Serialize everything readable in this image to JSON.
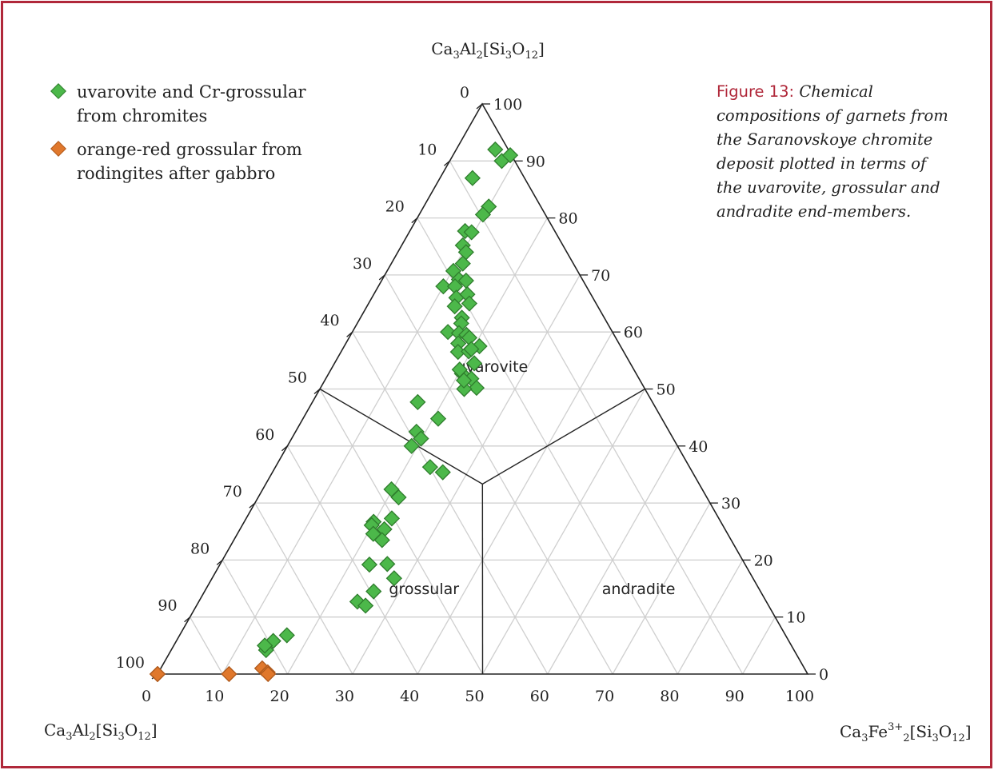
{
  "figure": {
    "label": "Figure 13:",
    "caption": "Chemical compositions of garnets from the Saranovskoye chromite deposit plotted in terms of the uvarovite, grossular and andradite end-members."
  },
  "legend": [
    {
      "label": "uvarovite and Cr-grossular from chromites",
      "color": "#4cb84a"
    },
    {
      "label": "orange-red grossular from rodingites after gabbro",
      "color": "#e0782c"
    }
  ],
  "chart_data": {
    "type": "scatter",
    "subtype": "ternary",
    "apex_labels": {
      "top": "Ca3Al2[Si3O12]",
      "bottom_left": "Ca3Al2[Si3O12]",
      "bottom_right": "Ca3Fe3+2[Si3O12]"
    },
    "left_axis_ticks": [
      "0",
      "10",
      "20",
      "30",
      "40",
      "50",
      "60",
      "70",
      "80",
      "90",
      "100"
    ],
    "right_axis_ticks": [
      "100",
      "90",
      "80",
      "70",
      "60",
      "50",
      "40",
      "30",
      "20",
      "10",
      "0"
    ],
    "bottom_axis_ticks": [
      "0",
      "10",
      "20",
      "30",
      "40",
      "50",
      "60",
      "70",
      "80",
      "90",
      "100"
    ],
    "regions": [
      "uvarovite",
      "grossular",
      "andradite"
    ],
    "grid": true,
    "series": [
      {
        "name": "uvarovite and Cr-grossular from chromites",
        "color": "#4cb84a",
        "points": [
          [
            6,
            92
          ],
          [
            5,
            87
          ],
          [
            8,
            90
          ],
          [
            8.8,
            91
          ],
          [
            10,
            82
          ],
          [
            9.8,
            80.6
          ],
          [
            8.5,
            77.7
          ],
          [
            9.6,
            77.5
          ],
          [
            9.4,
            75.2
          ],
          [
            10.5,
            74
          ],
          [
            11,
            72
          ],
          [
            10.2,
            70.7
          ],
          [
            10,
            68
          ],
          [
            11.8,
            69.2
          ],
          [
            13,
            69
          ],
          [
            11.8,
            68
          ],
          [
            13,
            66
          ],
          [
            14.4,
            66.6
          ],
          [
            15.5,
            65
          ],
          [
            13.5,
            64.5
          ],
          [
            15.6,
            62.5
          ],
          [
            16,
            61.5
          ],
          [
            14.7,
            60
          ],
          [
            16.5,
            59.8
          ],
          [
            17.8,
            59.5
          ],
          [
            18.5,
            59
          ],
          [
            17.3,
            58
          ],
          [
            18,
            56.5
          ],
          [
            19.6,
            56.6
          ],
          [
            20.8,
            57.5
          ],
          [
            19.8,
            57
          ],
          [
            21.5,
            54.5
          ],
          [
            20.5,
            52.7
          ],
          [
            22.4,
            51.8
          ],
          [
            24,
            50.2
          ],
          [
            22.2,
            50
          ],
          [
            21.4,
            51.5
          ],
          [
            19.8,
            53.4
          ],
          [
            16.2,
            47.7
          ],
          [
            20.8,
            44.8
          ],
          [
            18.6,
            42.5
          ],
          [
            19.9,
            41.3
          ],
          [
            19.1,
            40
          ],
          [
            23.8,
            36.3
          ],
          [
            26.2,
            35.4
          ],
          [
            19.8,
            32.4
          ],
          [
            21.6,
            31
          ],
          [
            19.9,
            26.7
          ],
          [
            22.4,
            27.3
          ],
          [
            19.9,
            26.1
          ],
          [
            22.2,
            25.4
          ],
          [
            20.9,
            24.6
          ],
          [
            22.8,
            23.5
          ],
          [
            23,
            19.2
          ],
          [
            25.7,
            19.3
          ],
          [
            28,
            16.8
          ],
          [
            26,
            14.5
          ],
          [
            24.4,
            12.7
          ],
          [
            26,
            12
          ],
          [
            16.5,
            6.8
          ],
          [
            14.9,
            5.8
          ],
          [
            14.6,
            4.2
          ],
          [
            14,
            5
          ]
        ]
      },
      {
        "name": "orange-red grossular from rodingites after gabbro",
        "color": "#e0782c",
        "points": [
          [
            0,
            0
          ],
          [
            0,
            0
          ],
          [
            0,
            0
          ],
          [
            0,
            0
          ],
          [
            11,
            0
          ],
          [
            15.6,
            1
          ],
          [
            16.8,
            0.3
          ],
          [
            17,
            0
          ]
        ]
      }
    ]
  }
}
